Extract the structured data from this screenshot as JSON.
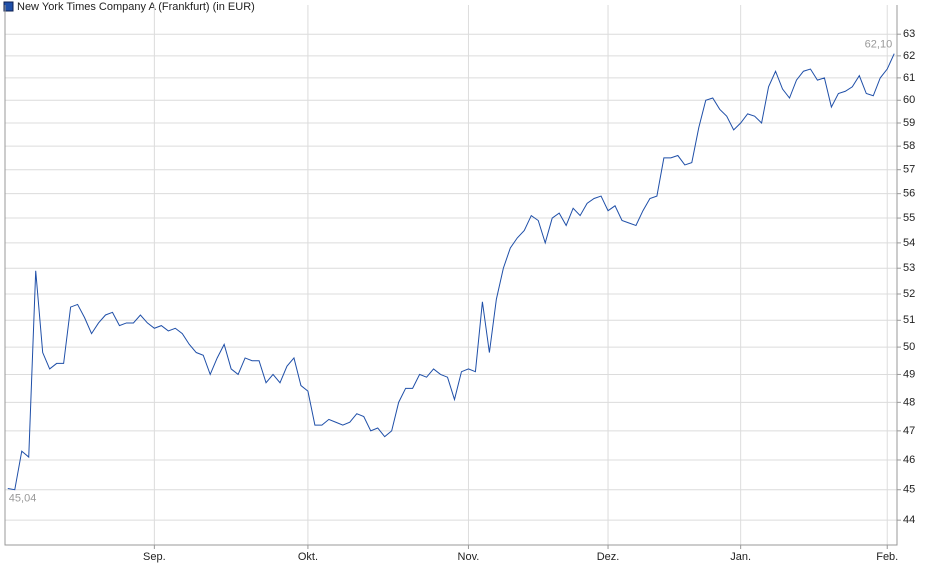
{
  "chart_data": {
    "type": "line",
    "series": [
      {
        "name": "New York Times Company A (Frankfurt) (in EUR)",
        "color": "#1f4fa8",
        "values": [
          45.04,
          45.0,
          46.3,
          46.1,
          52.9,
          49.8,
          49.2,
          49.4,
          49.4,
          51.5,
          51.6,
          51.1,
          50.5,
          50.9,
          51.2,
          51.3,
          50.8,
          50.9,
          50.9,
          51.2,
          50.9,
          50.7,
          50.8,
          50.6,
          50.7,
          50.5,
          50.1,
          49.8,
          49.7,
          49.0,
          49.6,
          50.1,
          49.2,
          49.0,
          49.6,
          49.5,
          49.5,
          48.7,
          49.0,
          48.7,
          49.3,
          49.6,
          48.6,
          48.4,
          47.2,
          47.2,
          47.4,
          47.3,
          47.2,
          47.3,
          47.6,
          47.5,
          47.0,
          47.1,
          46.8,
          47.0,
          48.0,
          48.5,
          48.5,
          49.0,
          48.9,
          49.2,
          49.0,
          48.9,
          48.1,
          49.1,
          49.2,
          49.1,
          51.7,
          49.8,
          51.8,
          53.0,
          53.8,
          54.2,
          54.5,
          55.1,
          54.9,
          54.0,
          55.0,
          55.2,
          54.7,
          55.4,
          55.1,
          55.6,
          55.8,
          55.9,
          55.3,
          55.5,
          54.9,
          54.8,
          54.7,
          55.3,
          55.8,
          55.9,
          57.5,
          57.5,
          57.6,
          57.2,
          57.3,
          58.8,
          60.0,
          60.1,
          59.6,
          59.3,
          58.7,
          59.0,
          59.4,
          59.3,
          59.0,
          60.6,
          61.3,
          60.5,
          60.1,
          60.9,
          61.3,
          61.4,
          60.9,
          61.0,
          59.7,
          60.3,
          60.4,
          60.6,
          61.1,
          60.3,
          60.2,
          61.0,
          61.4,
          62.1
        ]
      }
    ],
    "start_label": "45,04",
    "end_label": "62,10",
    "xlim": [
      -0.4,
      127.4
    ],
    "xticks": [
      {
        "value": 21,
        "label": "Sep."
      },
      {
        "value": 43,
        "label": "Okt."
      },
      {
        "value": 66,
        "label": "Nov."
      },
      {
        "value": 86,
        "label": "Dez."
      },
      {
        "value": 105,
        "label": "Jan."
      },
      {
        "value": 126,
        "label": "Feb."
      }
    ],
    "ylim": [
      43.2,
      63.9
    ],
    "log": true,
    "yticks": [
      44,
      45,
      46,
      47,
      48,
      49,
      50,
      51,
      52,
      53,
      54,
      55,
      56,
      57,
      58,
      59,
      60,
      61,
      62,
      63
    ],
    "grid": true
  }
}
